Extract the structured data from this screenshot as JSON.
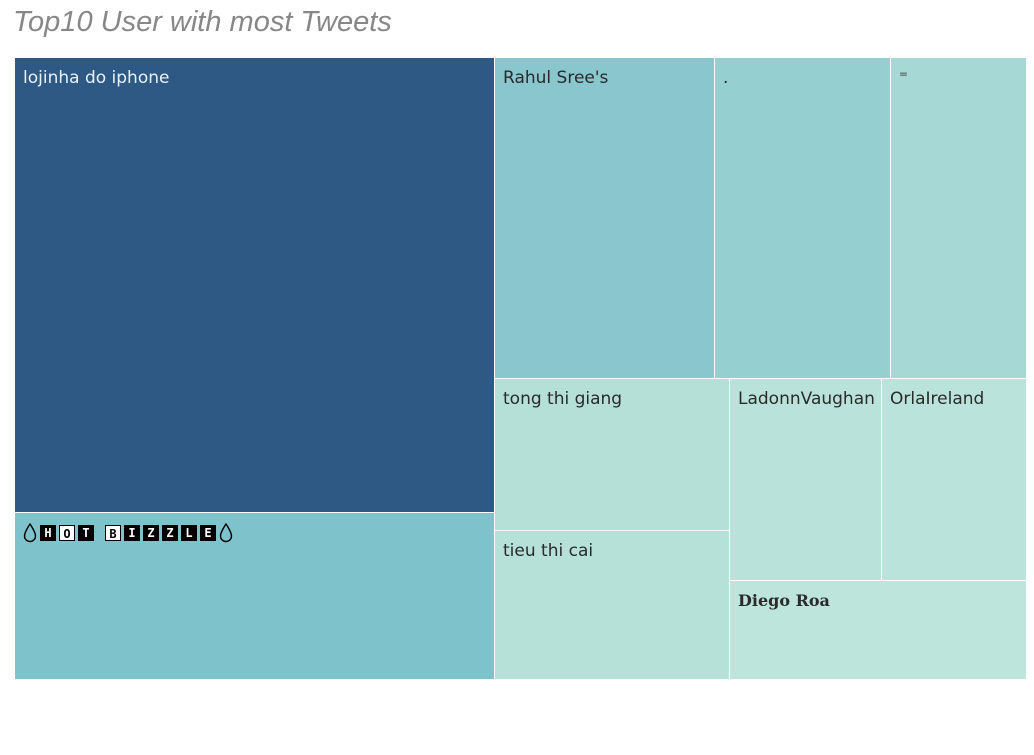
{
  "title": "Top10 User with most Tweets",
  "chart_data": {
    "type": "treemap",
    "title": "Top10 User with most Tweets",
    "color_encoding": "darker blue = more tweets",
    "nodes": [
      {
        "label": "lojinha do iphone",
        "value": 100,
        "color": "#2e5984",
        "text_color": "#e8f1f6"
      },
      {
        "label": "💧🅷🅾🆃 🅱🅸🆉🆉🅻🅴💧",
        "display": {
          "boxes": [
            "H",
            "O",
            "T",
            " ",
            "B",
            "I",
            "Z",
            "Z",
            "L",
            "E"
          ],
          "outlined": [
            "O",
            "B"
          ]
        },
        "value": 36,
        "color": "#7ec3cb",
        "text_color": "#000000"
      },
      {
        "label": "Rahul Sree's",
        "value": 22,
        "color": "#89c6ce",
        "text_color": "#2a2a2a"
      },
      {
        "label": ".",
        "value": 18,
        "color": "#96cfd0",
        "text_color": "#2a2a2a"
      },
      {
        "label": "⁼",
        "value": 16,
        "color": "#a6d9d5",
        "text_color": "#2a2a2a"
      },
      {
        "label": "tong thi giang",
        "value": 11,
        "color": "#b4e0d8",
        "text_color": "#2a2a2a"
      },
      {
        "label": "tieu thi cai",
        "value": 10.5,
        "color": "#b6e1d9",
        "text_color": "#2a2a2a"
      },
      {
        "label": "LadonnVaughan",
        "value": 9,
        "color": "#b9e3da",
        "text_color": "#2a2a2a"
      },
      {
        "label": "OrlaIreland",
        "value": 9,
        "color": "#bae4db",
        "text_color": "#2a2a2a"
      },
      {
        "label": "Diego Roa",
        "value": 9,
        "color": "#bde5dc",
        "text_color": "#2a2a2a"
      }
    ]
  }
}
